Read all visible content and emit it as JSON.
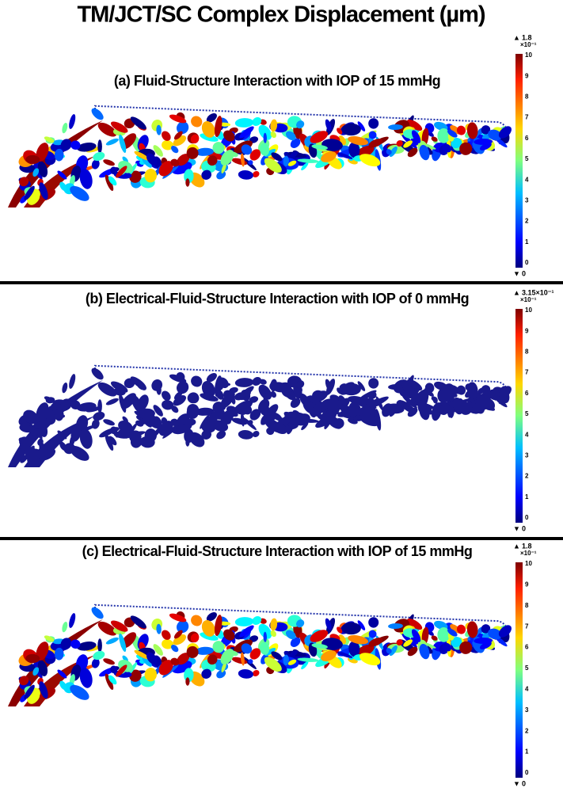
{
  "title": "TM/JCT/SC Complex Displacement (µm)",
  "panels": [
    {
      "title": "(a) Fluid-Structure Interaction with IOP of 15 mmHg",
      "colorbar": {
        "max_label": "1.8",
        "exponent": "×10⁻¹",
        "ticks": [
          10,
          9,
          8,
          7,
          6,
          5,
          4,
          3,
          2,
          1,
          0
        ],
        "min_label": "0"
      }
    },
    {
      "title": "(b)  Electrical-Fluid-Structure Interaction with IOP of 0 mmHg",
      "colorbar": {
        "max_label": "3.15×10⁻¹",
        "exponent": "×10⁻¹",
        "ticks": [
          10,
          9,
          8,
          7,
          6,
          5,
          4,
          3,
          2,
          1,
          0
        ],
        "min_label": "0"
      }
    },
    {
      "title": "(c) Electrical-Fluid-Structure Interaction with IOP of 15 mmHg",
      "colorbar": {
        "max_label": "1.8",
        "exponent": "×10⁻¹",
        "ticks": [
          10,
          9,
          8,
          7,
          6,
          5,
          4,
          3,
          2,
          1,
          0
        ],
        "min_label": "0"
      }
    }
  ]
}
